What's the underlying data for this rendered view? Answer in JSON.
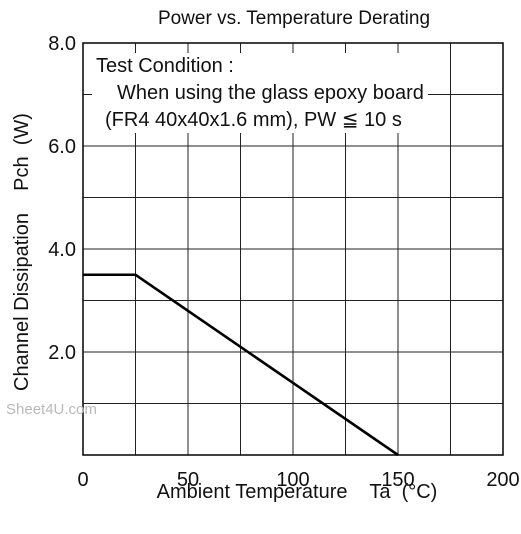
{
  "chart_data": {
    "type": "line",
    "title": "Power vs. Temperature Derating",
    "xlabel": "Ambient Temperature    Ta  (°C)",
    "ylabel": "Channel Dissipation    Pch  (W)",
    "xlim": [
      0,
      200
    ],
    "ylim": [
      0,
      8.0
    ],
    "x_ticks": [
      0,
      50,
      100,
      150,
      200
    ],
    "x_tick_labels": [
      "0",
      "50",
      "100",
      "150",
      "200"
    ],
    "y_ticks": [
      2.0,
      4.0,
      6.0,
      8.0
    ],
    "y_tick_labels": [
      "2.0",
      "4.0",
      "6.0",
      "8.0"
    ],
    "grid_x_step": 25,
    "grid_y_step": 1.0,
    "grid": true,
    "series": [
      {
        "x": [
          0,
          25,
          150
        ],
        "y": [
          3.5,
          3.5,
          0
        ]
      }
    ],
    "annotation": {
      "lines": [
        "Test Condition :",
        "When using the glass epoxy board",
        "(FR4  40x40x1.6 mm), PW ≦ 10 s"
      ]
    }
  },
  "watermark": "Sheet4U.com"
}
